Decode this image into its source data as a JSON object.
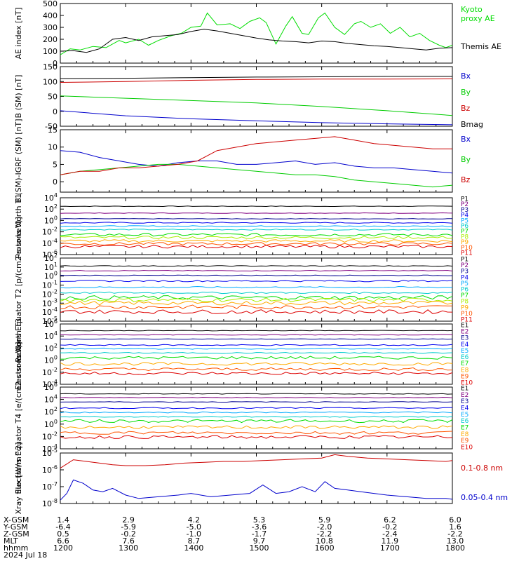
{
  "footer": {
    "rows": [
      {
        "label": "X-GSM",
        "values": [
          "1.4",
          "2.9",
          "4.2",
          "5.3",
          "5.9",
          "6.2",
          "6.0"
        ]
      },
      {
        "label": "Y-GSM",
        "values": [
          "-6.4",
          "-5.9",
          "-5.0",
          "-3.6",
          "-2.0",
          "-0.2",
          "1.6"
        ]
      },
      {
        "label": "Z-GSM",
        "values": [
          "0.5",
          "-0.2",
          "-1.0",
          "-1.7",
          "-2.2",
          "-2.4",
          "-2.2"
        ]
      },
      {
        "label": "MLT",
        "values": [
          "6.6",
          "7.6",
          "8.7",
          "9.7",
          "10.8",
          "11.9",
          "13.0"
        ]
      },
      {
        "label": "hhmm",
        "values": [
          "1200",
          "1300",
          "1400",
          "1500",
          "1600",
          "1700",
          "1800"
        ]
      }
    ],
    "date": "2024 Jul 18"
  },
  "chart_data": [
    {
      "type": "line",
      "ylabel": "AE index [nT]",
      "ylim": [
        0,
        500
      ],
      "yticks": [
        "0",
        "100",
        "200",
        "300",
        "400",
        "500"
      ],
      "x_hours": [
        12,
        18
      ],
      "series": [
        {
          "name": "Kyoto proxy AE",
          "color": "#00dd00",
          "x": [
            12.0,
            12.15,
            12.3,
            12.5,
            12.7,
            12.9,
            13.0,
            13.2,
            13.35,
            13.5,
            13.7,
            13.85,
            14.0,
            14.15,
            14.25,
            14.4,
            14.6,
            14.75,
            14.9,
            15.05,
            15.15,
            15.3,
            15.45,
            15.55,
            15.7,
            15.8,
            15.95,
            16.05,
            16.2,
            16.35,
            16.5,
            16.6,
            16.75,
            16.9,
            17.05,
            17.2,
            17.35,
            17.5,
            17.65,
            17.8,
            17.9,
            18.0
          ],
          "values": [
            70,
            120,
            110,
            140,
            130,
            190,
            170,
            200,
            150,
            190,
            230,
            250,
            300,
            310,
            420,
            320,
            330,
            290,
            350,
            380,
            340,
            160,
            310,
            390,
            250,
            240,
            380,
            420,
            300,
            240,
            330,
            350,
            300,
            330,
            250,
            300,
            220,
            250,
            190,
            150,
            130,
            150
          ]
        },
        {
          "name": "Themis AE",
          "color": "#000000",
          "x": [
            12.0,
            12.2,
            12.4,
            12.6,
            12.8,
            13.0,
            13.2,
            13.4,
            13.6,
            13.8,
            14.0,
            14.2,
            14.4,
            14.6,
            14.8,
            15.0,
            15.2,
            15.4,
            15.6,
            15.8,
            16.0,
            16.2,
            16.4,
            16.6,
            16.8,
            17.0,
            17.2,
            17.4,
            17.6,
            17.8,
            18.0
          ],
          "values": [
            100,
            105,
            90,
            120,
            200,
            215,
            190,
            220,
            230,
            240,
            265,
            285,
            270,
            250,
            230,
            210,
            195,
            185,
            180,
            170,
            185,
            180,
            165,
            155,
            145,
            140,
            130,
            120,
            110,
            125,
            130
          ]
        }
      ]
    },
    {
      "type": "line",
      "ylabel": "B (SM) [nT]",
      "ylim": [
        -50,
        150
      ],
      "yticks": [
        "-50",
        "0",
        "50",
        "100",
        "150"
      ],
      "x_hours": [
        12,
        18
      ],
      "series": [
        {
          "name": "Bx",
          "color": "#0000cc",
          "x": [
            12,
            13,
            14,
            15,
            16,
            17,
            18
          ],
          "values": [
            2,
            -15,
            -25,
            -32,
            -38,
            -42,
            -45
          ]
        },
        {
          "name": "By",
          "color": "#00cc00",
          "x": [
            12,
            13,
            14,
            15,
            16,
            17,
            18
          ],
          "values": [
            52,
            44,
            36,
            28,
            16,
            2,
            -14
          ]
        },
        {
          "name": "Bz",
          "color": "#cc0000",
          "x": [
            12,
            13,
            14,
            15,
            16,
            17,
            18
          ],
          "values": [
            97,
            100,
            104,
            107,
            108,
            108,
            109
          ]
        },
        {
          "name": "Bmag",
          "color": "#000000",
          "x": [
            12,
            13,
            14,
            15,
            16,
            17,
            18
          ],
          "values": [
            110,
            111,
            113,
            115,
            116,
            117,
            117
          ]
        }
      ]
    },
    {
      "type": "line",
      "ylabel": "B (SM)-IGRF (SM) [nT]",
      "ylim": [
        -3,
        15
      ],
      "yticks": [
        "0",
        "5",
        "10",
        "15"
      ],
      "x_hours": [
        12,
        18
      ],
      "series": [
        {
          "name": "Bx",
          "color": "#0000cc",
          "x": [
            12.0,
            12.3,
            12.6,
            12.9,
            13.2,
            13.5,
            13.8,
            14.1,
            14.4,
            14.7,
            15.0,
            15.3,
            15.6,
            15.9,
            16.2,
            16.5,
            16.8,
            17.1,
            17.4,
            17.7,
            18.0
          ],
          "values": [
            9,
            8.5,
            7,
            6,
            5,
            4.5,
            5.5,
            6,
            6,
            5,
            5,
            5.5,
            6,
            5,
            5.5,
            4.5,
            4,
            4,
            3.5,
            3,
            2.5
          ]
        },
        {
          "name": "By",
          "color": "#00cc00",
          "x": [
            12.0,
            12.3,
            12.6,
            12.9,
            13.2,
            13.5,
            13.8,
            14.1,
            14.4,
            14.7,
            15.0,
            15.3,
            15.6,
            15.9,
            16.2,
            16.5,
            16.8,
            17.1,
            17.4,
            17.7,
            18.0
          ],
          "values": [
            2,
            3,
            3.5,
            4,
            4.5,
            5,
            5,
            4.5,
            4,
            3.5,
            3,
            2.5,
            2,
            2,
            1.5,
            0.5,
            0,
            -0.5,
            -1,
            -1.5,
            -1
          ]
        },
        {
          "name": "Bz",
          "color": "#cc0000",
          "x": [
            12.0,
            12.3,
            12.6,
            12.9,
            13.2,
            13.5,
            13.8,
            14.1,
            14.4,
            14.7,
            15.0,
            15.3,
            15.6,
            15.9,
            16.2,
            16.5,
            16.8,
            17.1,
            17.4,
            17.7,
            18.0
          ],
          "values": [
            2,
            3,
            3,
            4,
            4,
            4.5,
            5,
            6,
            9,
            10,
            11,
            11.5,
            12,
            12.5,
            13,
            12,
            11,
            10.5,
            10,
            9.5,
            9.5
          ]
        }
      ]
    },
    {
      "type": "line",
      "ylabel": "Protons North T1",
      "log": true,
      "ylim_exp": [
        -6,
        4
      ],
      "ytick_labels": [
        "10^4",
        "10^2",
        "10^0",
        "10^-2",
        "10^-4",
        "10^-6"
      ],
      "x_hours": [
        12,
        18
      ],
      "series": [
        {
          "name": "P1",
          "color": "#000000",
          "level": 2.5
        },
        {
          "name": "P2",
          "color": "#800080",
          "level": 1.3
        },
        {
          "name": "P3",
          "color": "#000090",
          "level": 0.3
        },
        {
          "name": "P4",
          "color": "#0000ee",
          "level": -0.4
        },
        {
          "name": "P5",
          "color": "#00aaff",
          "level": -1.0
        },
        {
          "name": "P6",
          "color": "#00cccc",
          "level": -1.6
        },
        {
          "name": "P7",
          "color": "#00dd00",
          "level": -2.5
        },
        {
          "name": "P8",
          "color": "#aaee00",
          "level": -3.0
        },
        {
          "name": "P9",
          "color": "#ffaa00",
          "level": -3.6
        },
        {
          "name": "P10",
          "color": "#ff5500",
          "level": -4.1
        },
        {
          "name": "P11",
          "color": "#dd0000",
          "level": -4.6
        }
      ]
    },
    {
      "type": "line",
      "ylabel": "Protons Equator T2 [p/(cm2-s-sr-keV)]",
      "log": true,
      "ylim_exp": [
        -6,
        2
      ],
      "ytick_labels": [
        "10^2",
        "10^1",
        "10^0",
        "10^-1",
        "10^-2",
        "10^-3",
        "10^-4",
        "10^-5"
      ],
      "x_hours": [
        12,
        18
      ],
      "series": [
        {
          "name": "P1",
          "color": "#000000",
          "level": 1.0
        },
        {
          "name": "P2",
          "color": "#800080",
          "level": 0.4
        },
        {
          "name": "P3",
          "color": "#000090",
          "level": -0.2
        },
        {
          "name": "P4",
          "color": "#0000ee",
          "level": -0.9
        },
        {
          "name": "P5",
          "color": "#00aaff",
          "level": -1.7
        },
        {
          "name": "P6",
          "color": "#00cccc",
          "level": -2.4
        },
        {
          "name": "P7",
          "color": "#00dd00",
          "level": -3.0
        },
        {
          "name": "P8",
          "color": "#aaee00",
          "level": -3.3
        },
        {
          "name": "P9",
          "color": "#ffaa00",
          "level": -3.7
        },
        {
          "name": "P10",
          "color": "#ff5500",
          "level": -4.2
        },
        {
          "name": "P11",
          "color": "#dd0000",
          "level": -4.8
        }
      ]
    },
    {
      "type": "line",
      "ylabel": "Electrons North T3",
      "log": true,
      "ylim_exp": [
        -4,
        6
      ],
      "ytick_labels": [
        "10^6",
        "10^4",
        "10^2",
        "10^0",
        "10^-2",
        "10^-4"
      ],
      "x_hours": [
        12,
        18
      ],
      "series": [
        {
          "name": "E1",
          "color": "#000000",
          "level": 4.9
        },
        {
          "name": "E2",
          "color": "#800080",
          "level": 4.2
        },
        {
          "name": "E3",
          "color": "#000090",
          "level": 3.5
        },
        {
          "name": "E4",
          "color": "#0000ee",
          "level": 2.5
        },
        {
          "name": "E5",
          "color": "#00aaff",
          "level": 1.9
        },
        {
          "name": "E6",
          "color": "#00cccc",
          "level": 1.2
        },
        {
          "name": "E7",
          "color": "#00dd00",
          "level": 0.4
        },
        {
          "name": "E8",
          "color": "#ffaa00",
          "level": -0.6
        },
        {
          "name": "E9",
          "color": "#ff5500",
          "level": -1.5
        },
        {
          "name": "E10",
          "color": "#dd0000",
          "level": -2.2
        }
      ]
    },
    {
      "type": "line",
      "ylabel": "Electrons Equator T4 [e/(cm2-s-sr-keV)]",
      "log": true,
      "ylim_exp": [
        -4,
        6
      ],
      "ytick_labels": [
        "10^6",
        "10^4",
        "10^2",
        "10^0",
        "10^-2",
        "10^-4"
      ],
      "x_hours": [
        12,
        18
      ],
      "series": [
        {
          "name": "E1",
          "color": "#000000",
          "level": 4.9
        },
        {
          "name": "E2",
          "color": "#800080",
          "level": 4.3
        },
        {
          "name": "E3",
          "color": "#000090",
          "level": 3.6
        },
        {
          "name": "E4",
          "color": "#0000ee",
          "level": 2.6
        },
        {
          "name": "E5",
          "color": "#00aaff",
          "level": 1.9
        },
        {
          "name": "E6",
          "color": "#00cccc",
          "level": 1.2
        },
        {
          "name": "E7",
          "color": "#00dd00",
          "level": 0.5
        },
        {
          "name": "E8",
          "color": "#ffaa00",
          "level": -0.5
        },
        {
          "name": "E9",
          "color": "#ff5500",
          "level": -1.4
        },
        {
          "name": "E10",
          "color": "#dd0000",
          "level": -2.1
        }
      ]
    },
    {
      "type": "line",
      "ylabel": "Xray flux [W/m^2]",
      "log": true,
      "ylim_exp": [
        -8,
        -5
      ],
      "ytick_labels": [
        "10^-5",
        "10^-6",
        "10^-7",
        "10^-8"
      ],
      "x_hours": [
        12,
        18
      ],
      "series": [
        {
          "name": "0.1-0.8 nm",
          "color": "#cc0000",
          "x": [
            12.0,
            12.2,
            12.4,
            12.6,
            12.8,
            13.0,
            13.3,
            13.6,
            13.9,
            14.2,
            14.5,
            14.8,
            15.1,
            15.4,
            15.7,
            16.0,
            16.2,
            16.4,
            16.7,
            17.0,
            17.3,
            17.6,
            17.9,
            18.0
          ],
          "values": [
            -5.9,
            -5.4,
            -5.5,
            -5.6,
            -5.7,
            -5.75,
            -5.75,
            -5.7,
            -5.6,
            -5.55,
            -5.5,
            -5.5,
            -5.45,
            -5.4,
            -5.35,
            -5.3,
            -5.1,
            -5.2,
            -5.3,
            -5.35,
            -5.4,
            -5.45,
            -5.5,
            -5.45
          ]
        },
        {
          "name": "0.05-0.4 nm",
          "color": "#0000cc",
          "x": [
            12.0,
            12.1,
            12.2,
            12.35,
            12.5,
            12.65,
            12.8,
            13.0,
            13.2,
            13.5,
            13.8,
            14.0,
            14.3,
            14.6,
            14.9,
            15.1,
            15.3,
            15.5,
            15.7,
            15.9,
            16.05,
            16.2,
            16.4,
            16.6,
            16.8,
            17.0,
            17.3,
            17.6,
            17.9,
            18.0
          ],
          "values": [
            -7.8,
            -7.4,
            -6.6,
            -6.8,
            -7.2,
            -7.3,
            -7.1,
            -7.5,
            -7.7,
            -7.6,
            -7.5,
            -7.4,
            -7.6,
            -7.5,
            -7.4,
            -6.9,
            -7.4,
            -7.3,
            -7.0,
            -7.3,
            -6.7,
            -7.1,
            -7.2,
            -7.3,
            -7.4,
            -7.5,
            -7.6,
            -7.7,
            -7.7,
            -7.75
          ]
        }
      ]
    }
  ]
}
